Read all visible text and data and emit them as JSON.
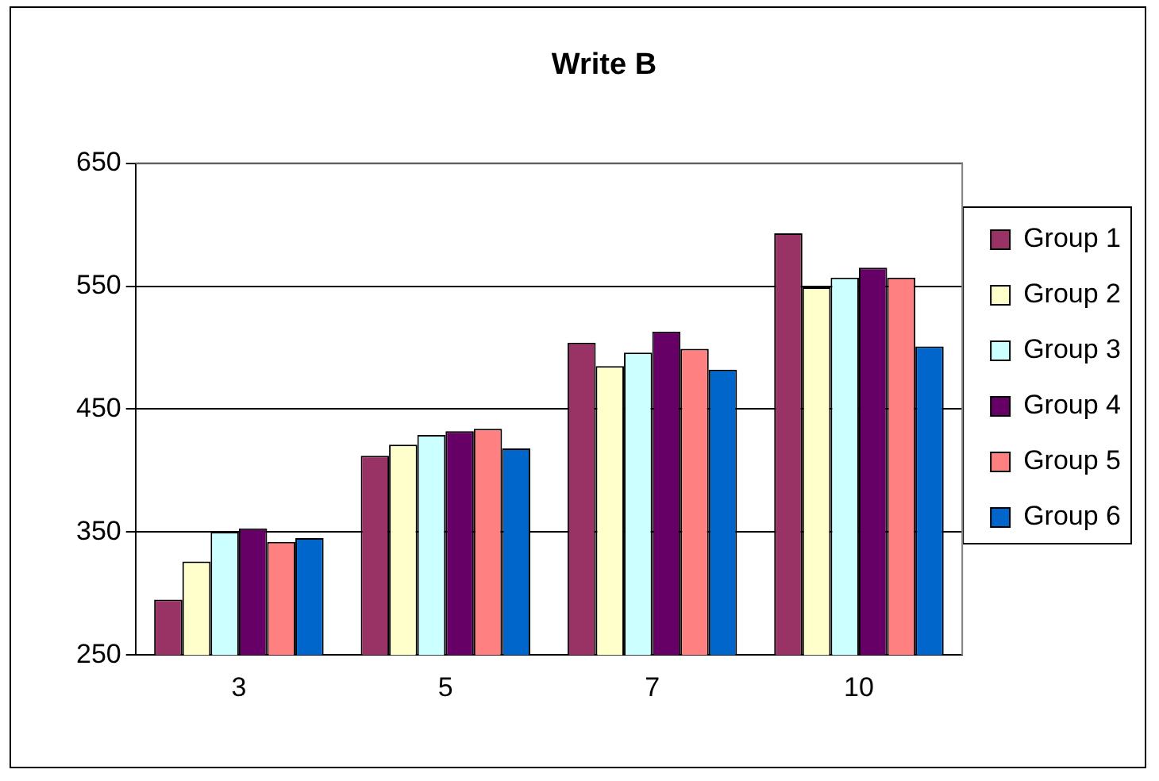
{
  "chart_data": {
    "type": "bar",
    "title": "Write B",
    "categories": [
      "3",
      "5",
      "7",
      "10"
    ],
    "series": [
      {
        "name": "Group 1",
        "color": "#993366",
        "values": [
          295,
          412,
          504,
          593
        ]
      },
      {
        "name": "Group 2",
        "color": "#ffffcc",
        "values": [
          326,
          421,
          485,
          549
        ]
      },
      {
        "name": "Group 3",
        "color": "#ccffff",
        "values": [
          350,
          429,
          496,
          557
        ]
      },
      {
        "name": "Group 4",
        "color": "#660066",
        "values": [
          353,
          432,
          513,
          565
        ]
      },
      {
        "name": "Group 5",
        "color": "#ff8080",
        "values": [
          342,
          434,
          499,
          557
        ]
      },
      {
        "name": "Group 6",
        "color": "#0066cc",
        "values": [
          345,
          418,
          482,
          501
        ]
      }
    ],
    "ylim": [
      250,
      650
    ],
    "yticks": [
      250,
      350,
      450,
      550,
      650
    ],
    "grid": "y",
    "legend": "right"
  }
}
